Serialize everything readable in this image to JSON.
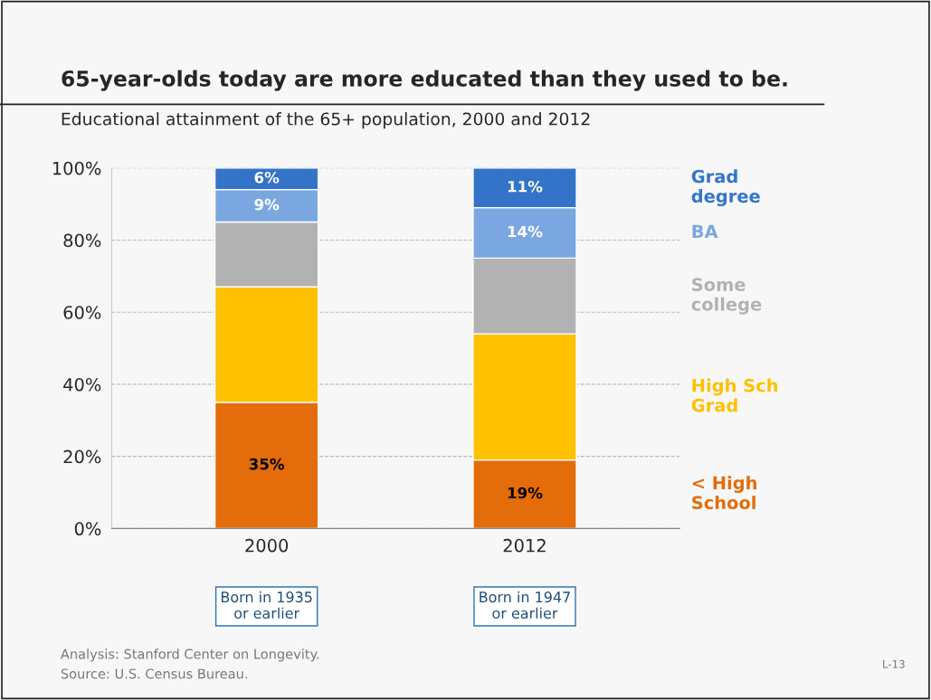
{
  "chart_data": {
    "type": "bar",
    "stacked": true,
    "title": "65-year-olds today are more educated than they used to be.",
    "subtitle": "Educational attainment of the 65+ population, 2000 and 2012",
    "categories": [
      "2000",
      "2012"
    ],
    "series": [
      {
        "name": "< High\nSchool",
        "color": "#e46c0a",
        "values": [
          35,
          19
        ],
        "value_labels": [
          "35%",
          "19%"
        ]
      },
      {
        "name": "High Sch\nGrad",
        "color": "#ffc000",
        "values": [
          32,
          35
        ],
        "value_labels": [
          null,
          null
        ]
      },
      {
        "name": "Some\ncollege",
        "color": "#b2b2b2",
        "values": [
          18,
          21
        ],
        "value_labels": [
          null,
          null
        ]
      },
      {
        "name": "BA",
        "color": "#7ba7e1",
        "values": [
          9,
          14
        ],
        "value_labels": [
          "9%",
          "14%"
        ]
      },
      {
        "name": "Grad\ndegree",
        "color": "#3474c8",
        "values": [
          6,
          11
        ],
        "value_labels": [
          "6%",
          "11%"
        ]
      }
    ],
    "ylim": [
      0,
      100
    ],
    "yticks": [
      {
        "value": 0,
        "label": "0%"
      },
      {
        "value": 20,
        "label": "20%"
      },
      {
        "value": 40,
        "label": "40%"
      },
      {
        "value": 60,
        "label": "60%"
      },
      {
        "value": 80,
        "label": "80%"
      },
      {
        "value": 100,
        "label": "100%"
      }
    ],
    "grid": "y",
    "legend": "right",
    "annotations": [
      "Born in 1935\nor earlier",
      "Born in 1947\nor earlier",
      "Analysis: Stanford Center on Longevity.\nSource: U.S. Census Bureau.",
      "L-13"
    ]
  }
}
